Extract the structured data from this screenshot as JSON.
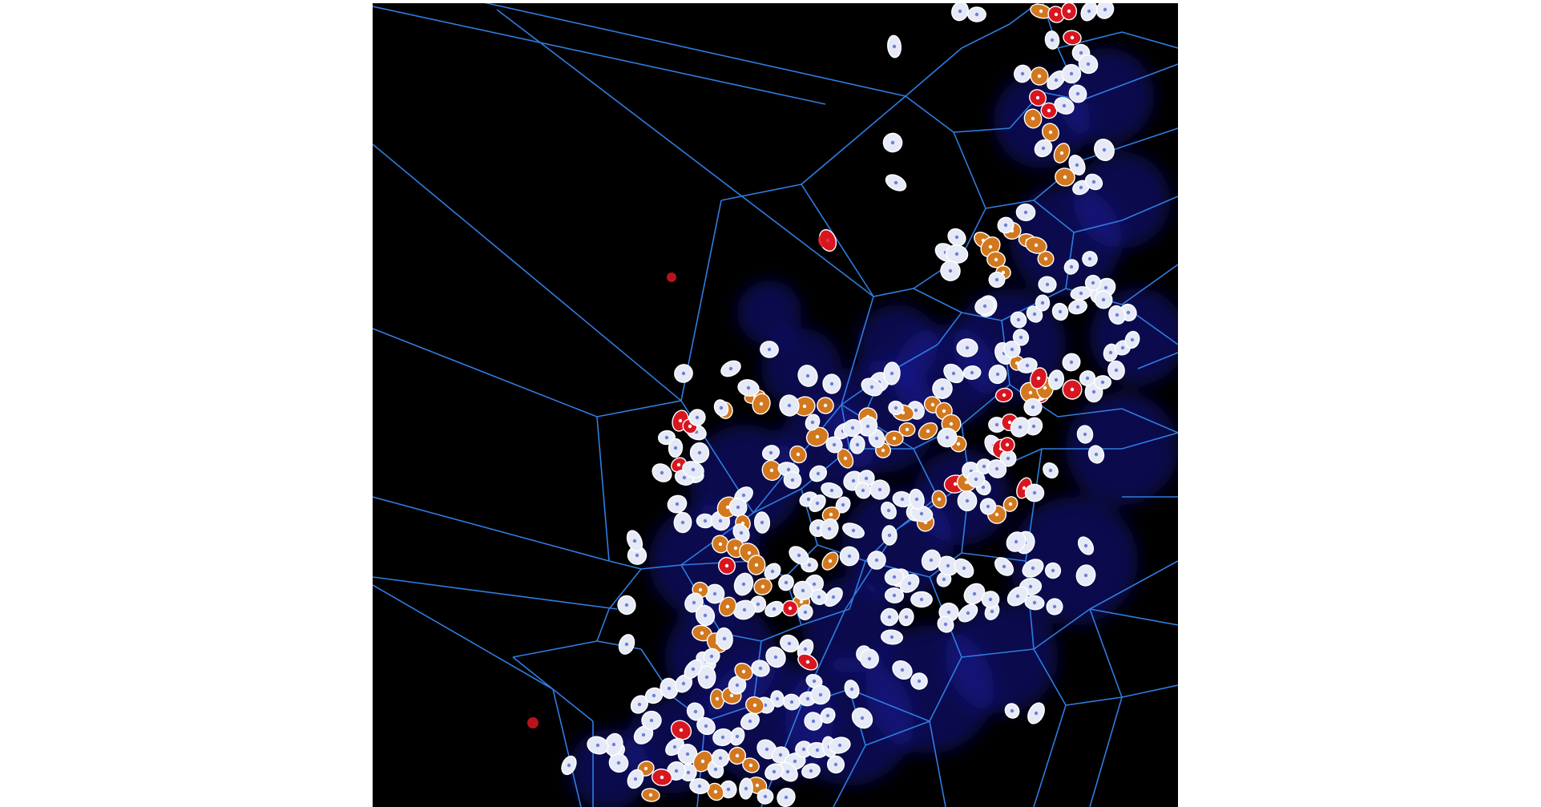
{
  "image": {
    "kind": "fluorescence-micrograph-voronoi-overlay",
    "colors": {
      "page_background": "#ffffff",
      "tissue_background": "#000000",
      "nuclear_stain": "#1a1aa8",
      "voronoi_edges": "#2f7de1",
      "cell_white": "#e6eaf6",
      "cell_orange": "#d2781e",
      "cell_red": "#d81620",
      "cell_center": "#ffffff"
    },
    "cell_classes": [
      {
        "name": "white",
        "color": "#e6eaf6"
      },
      {
        "name": "orange",
        "color": "#d2781e"
      },
      {
        "name": "red",
        "color": "#d81620"
      }
    ]
  }
}
